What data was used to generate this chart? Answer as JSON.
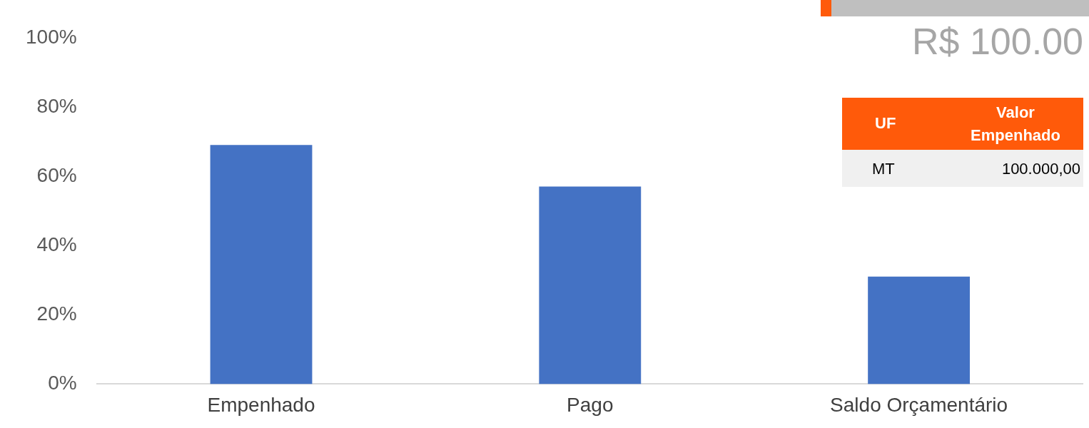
{
  "chart_data": {
    "type": "bar",
    "categories": [
      "Empenhado",
      "Pago",
      "Saldo Orçamentário"
    ],
    "values": [
      69,
      57,
      31
    ],
    "color": "#4472c4",
    "ylim": [
      0,
      100
    ],
    "yticks": [
      {
        "value": 0,
        "label": "0%"
      },
      {
        "value": 20,
        "label": "20%"
      },
      {
        "value": 40,
        "label": "40%"
      },
      {
        "value": 60,
        "label": "60%"
      },
      {
        "value": 80,
        "label": "80%"
      },
      {
        "value": 100,
        "label": "100%"
      }
    ],
    "grid": false,
    "legend": false,
    "annotations": [
      "R$ 100.00",
      "UF",
      "Valor Empenhado",
      "MT",
      "100.000,00"
    ]
  }
}
